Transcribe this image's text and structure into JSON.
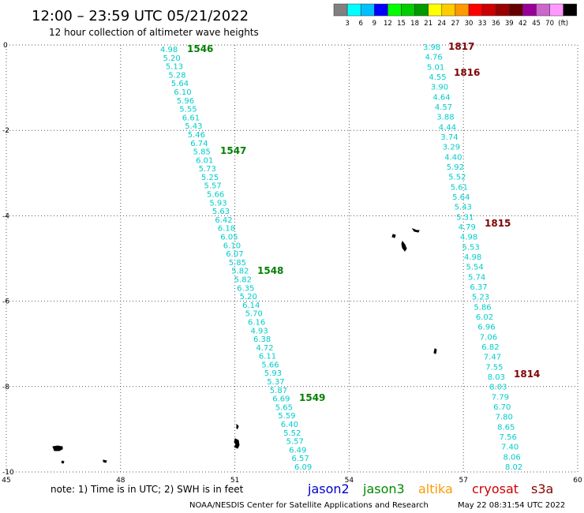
{
  "header": {
    "title": "12:00 – 23:59 UTC 05/21/2022",
    "subtitle": "12 hour collection of altimeter wave heights"
  },
  "color_scale": {
    "colors": [
      "#808080",
      "#00ffff",
      "#00bfff",
      "#0000ff",
      "#00ff00",
      "#00cc00",
      "#009900",
      "#ffff00",
      "#ffcc00",
      "#ff9900",
      "#ff0000",
      "#cc0000",
      "#990000",
      "#660000",
      "#990099",
      "#cc66cc",
      "#ff99ff",
      "#000000"
    ],
    "labels": [
      "3",
      "6",
      "9",
      "12",
      "15",
      "18",
      "21",
      "24",
      "27",
      "30",
      "33",
      "36",
      "39",
      "42",
      "45",
      "70",
      "(ft)"
    ]
  },
  "map": {
    "lon_range": [
      45,
      60
    ],
    "lat_range": [
      -10,
      0
    ],
    "lon_ticks": [
      "45",
      "48",
      "51",
      "54",
      "57",
      "60"
    ],
    "lat_ticks": [
      "0",
      "-2",
      "-4",
      "-6",
      "-8",
      "-10"
    ],
    "grid": true
  },
  "tracks": [
    {
      "satellite": "jason3",
      "color": "#00cccc",
      "values": [
        "4.98",
        "5.20",
        "5.13",
        "5.28",
        "5.64",
        "6.10",
        "5.96",
        "5.55",
        "6.61",
        "5.43",
        "5.46",
        "6.74",
        "5.85",
        "6.01",
        "5.73",
        "5.25",
        "5.57",
        "5.66",
        "5.93",
        "5.63",
        "6.42",
        "6.18",
        "6.05",
        "6.10",
        "6.07",
        "5.85",
        "5.82",
        "5.82",
        "6.35",
        "5.20",
        "6.14",
        "5.70",
        "6.16",
        "4.93",
        "6.38",
        "4.72",
        "6.11",
        "5.66",
        "5.93",
        "5.37",
        "5.87",
        "6.69",
        "5.65",
        "5.59",
        "6.40",
        "5.52",
        "5.57",
        "6.49",
        "6.57",
        "6.09"
      ],
      "pass_labels": [
        {
          "label": "1546",
          "color": "#008000"
        },
        {
          "label": "1547",
          "color": "#008000"
        },
        {
          "label": "1548",
          "color": "#008000"
        },
        {
          "label": "1549",
          "color": "#008000"
        }
      ]
    },
    {
      "satellite": "cryosat",
      "color": "#00cccc",
      "values": [
        "3.98",
        "4.76",
        "5.01",
        "4.55",
        "3.90",
        "4.64",
        "4.57",
        "3.88",
        "4.44",
        "3.74",
        "3.29",
        "4.40",
        "5.92",
        "5.52",
        "5.61",
        "5.64",
        "5.43",
        "5.31",
        "4.79",
        "4.98",
        "5.53",
        "4.98",
        "5.54",
        "5.74",
        "6.37",
        "5.23",
        "5.86",
        "6.02",
        "6.96",
        "7.06",
        "6.82",
        "7.47",
        "7.55",
        "8.03",
        "8.03",
        "7.79",
        "6.70",
        "7.80",
        "8.65",
        "7.56",
        "7.40",
        "8.06",
        "8.02"
      ],
      "pass_labels": [
        {
          "label": "1817",
          "color": "#800000"
        },
        {
          "label": "1816",
          "color": "#800000"
        },
        {
          "label": "1815",
          "color": "#800000"
        },
        {
          "label": "1814",
          "color": "#800000"
        }
      ]
    }
  ],
  "note": "note:  1) Time is in UTC;  2) SWH is in feet",
  "legend": [
    {
      "name": "jason2",
      "color": "#0000cc"
    },
    {
      "name": "jason3",
      "color": "#008800"
    },
    {
      "name": "altika",
      "color": "#ff9900"
    },
    {
      "name": "cryosat",
      "color": "#cc0000"
    },
    {
      "name": "s3a",
      "color": "#880000"
    }
  ],
  "footer": {
    "credit": "NOAA/NESDIS Center for Satellite Applications and Research",
    "timestamp": "May 22 08:31:54 UTC 2022"
  }
}
